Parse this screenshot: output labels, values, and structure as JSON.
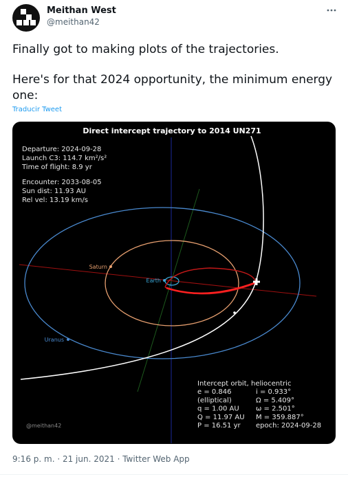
{
  "header": {
    "name": "Meithan West",
    "handle": "@meithan42"
  },
  "body": {
    "lines": [
      "Finally got to making plots of the trajectories.",
      "Here's for that 2024 opportunity, the minimum energy",
      "one:"
    ],
    "translate": "Traducir Tweet"
  },
  "image": {
    "title": "Direct intercept trajectory to 2014 UN271",
    "info": [
      "Departure: 2024-09-28",
      "Launch C3: 114.7 km²/s²",
      "Time of flight: 8.9 yr",
      "Encounter: 2033-08-05",
      "Sun dist: 11.93 AU",
      "Rel vel: 13.19 km/s"
    ],
    "labels": [
      "Saturn",
      "Earth",
      "Uranus"
    ],
    "orbit_heading": "Intercept orbit, heliocentric",
    "orbit_rows": [
      [
        "e = 0.846",
        "i = 0.933°"
      ],
      [
        "(elliptical)",
        "Ω = 5.409°"
      ],
      [
        "q = 1.00 AU",
        "ω = 2.501°"
      ],
      [
        "Q = 11.97 AU",
        "M = 359.887°"
      ],
      [
        "P = 16.51 yr",
        "epoch: 2024-09-28"
      ]
    ],
    "watermark": "@meithan42"
  },
  "footer": {
    "timestamp": "9:16 p. m. · 21 jun. 2021 · Twitter Web App"
  }
}
